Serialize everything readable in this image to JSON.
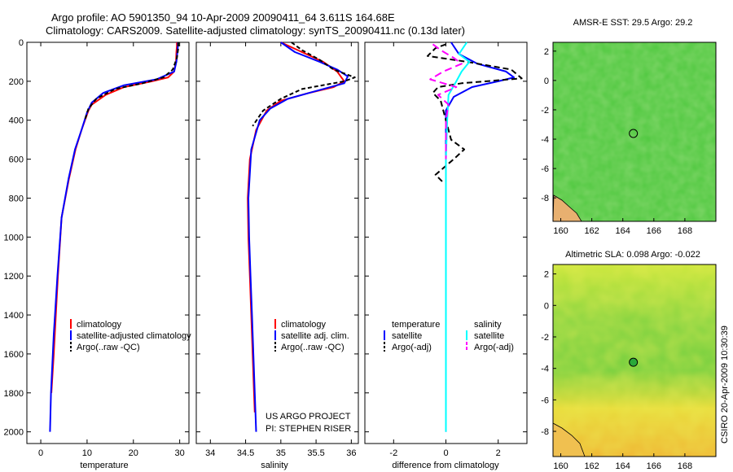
{
  "title": {
    "line1": "Argo profile: AO 5901350_94 10-Apr-2009 20090411_64 3.611S 164.68E",
    "line2": "Climatology: CARS2009. Satellite-adjusted climatology: synTS_20090411.nc (0.13d later)"
  },
  "side_text": "CSIRO 20-Apr-2009 10:30:39",
  "credit": {
    "line1": "US ARGO PROJECT",
    "line2": "PI: STEPHEN RISER"
  },
  "colors": {
    "climatology": "#ff0000",
    "satellite": "#0000ff",
    "argo": "#000000",
    "sat_diff_salinity": "#00ffff",
    "argo_diff_salinity": "#ff00ff"
  },
  "chart_data": [
    {
      "type": "line",
      "name": "temperature",
      "xlabel": "temperature",
      "xlim": [
        -3,
        32
      ],
      "ylim": [
        2060,
        0
      ],
      "xticks": [
        0,
        10,
        20,
        30
      ],
      "yticks": [
        0,
        200,
        400,
        600,
        800,
        1000,
        1200,
        1400,
        1600,
        1800,
        2000
      ],
      "legend": [
        "climatology",
        "satellite-adjusted climatology",
        "Argo(..raw -QC)"
      ],
      "series": [
        {
          "name": "climatology",
          "color": "#ff0000",
          "dash": "",
          "x": [
            29.4,
            29.4,
            29.3,
            29.2,
            28.8,
            27.5,
            24.0,
            18.0,
            14.0,
            11.0,
            10.3,
            8.8,
            7.5,
            6.1,
            4.5,
            3.7,
            2.8,
            2.3
          ],
          "y": [
            0,
            20,
            50,
            100,
            150,
            180,
            200,
            230,
            270,
            320,
            350,
            450,
            550,
            700,
            900,
            1200,
            1600,
            1800
          ]
        },
        {
          "name": "satellite",
          "color": "#0000ff",
          "dash": "",
          "x": [
            29.6,
            29.6,
            29.5,
            29.3,
            28.8,
            25.0,
            18.0,
            13.5,
            11.0,
            10.0,
            8.8,
            7.4,
            6.0,
            4.5,
            3.6,
            2.8,
            2.2,
            2.0
          ],
          "y": [
            0,
            20,
            50,
            100,
            150,
            190,
            220,
            260,
            310,
            360,
            450,
            550,
            700,
            900,
            1200,
            1500,
            1800,
            2000
          ]
        },
        {
          "name": "Argo",
          "color": "#000000",
          "dash": "5,3",
          "x": [
            29.7,
            29.7,
            29.4,
            28.5,
            26.5,
            22.0,
            16.0,
            12.0,
            10.3,
            9.5
          ],
          "y": [
            0,
            30,
            80,
            140,
            180,
            210,
            240,
            290,
            340,
            400
          ]
        }
      ]
    },
    {
      "type": "line",
      "name": "salinity",
      "xlabel": "salinity",
      "xlim": [
        33.8,
        36.1
      ],
      "ylim": [
        2060,
        0
      ],
      "xticks": [
        34,
        34.5,
        35,
        35.5,
        36
      ],
      "legend": [
        "climatology",
        "satellite adj. clim.",
        "Argo(..raw -QC)"
      ],
      "series": [
        {
          "name": "climatology",
          "color": "#ff0000",
          "dash": "",
          "x": [
            35.0,
            35.3,
            35.6,
            35.8,
            35.9,
            35.75,
            35.4,
            35.0,
            34.8,
            34.65,
            34.56,
            34.53,
            34.54,
            34.56,
            34.58,
            34.6,
            34.62,
            34.63
          ],
          "y": [
            0,
            50,
            100,
            150,
            200,
            230,
            260,
            300,
            350,
            450,
            600,
            800,
            1000,
            1200,
            1400,
            1600,
            1800,
            1900
          ]
        },
        {
          "name": "satellite",
          "color": "#0000ff",
          "dash": "",
          "x": [
            35.0,
            35.2,
            35.55,
            35.8,
            35.95,
            35.9,
            35.5,
            35.1,
            34.85,
            34.7,
            34.58,
            34.54,
            34.55,
            34.57,
            34.59,
            34.61,
            34.63,
            34.65
          ],
          "y": [
            0,
            50,
            100,
            140,
            175,
            210,
            250,
            290,
            340,
            400,
            550,
            800,
            1000,
            1200,
            1400,
            1600,
            1800,
            2000
          ]
        },
        {
          "name": "Argo",
          "color": "#000000",
          "dash": "5,3",
          "x": [
            35.15,
            35.3,
            35.55,
            35.75,
            36.05,
            35.9,
            35.3,
            35.0,
            34.75,
            34.6
          ],
          "y": [
            0,
            40,
            90,
            140,
            180,
            200,
            240,
            290,
            350,
            430
          ]
        }
      ]
    },
    {
      "type": "line",
      "name": "difference",
      "xlabel": "difference from climatology",
      "xlim": [
        -3.1,
        3.1
      ],
      "ylim": [
        2060,
        0
      ],
      "xticks": [
        -2,
        0,
        2
      ],
      "legend_headers": [
        "temperature",
        "salinity"
      ],
      "legend": [
        "satellite",
        "Argo(-adj)",
        "satellite",
        "Argo(-adj)"
      ],
      "series": [
        {
          "name": "temperature satellite",
          "color": "#0000ff",
          "dash": "",
          "x": [
            0.2,
            0.5,
            1.2,
            2.3,
            2.6,
            2.0,
            1.0,
            0.3,
            0.0,
            0.0,
            0.0,
            0.0
          ],
          "y": [
            0,
            60,
            110,
            150,
            180,
            200,
            230,
            280,
            350,
            600,
            1200,
            2000
          ]
        },
        {
          "name": "temperature Argo",
          "color": "#000000",
          "dash": "7,4",
          "x": [
            0.0,
            -0.4,
            -0.7,
            0.8,
            2.5,
            2.9,
            0.6,
            -0.3,
            -0.5,
            -0.2,
            0.0,
            0.2,
            0.7,
            0.3,
            -0.4,
            -0.1
          ],
          "y": [
            10,
            30,
            70,
            100,
            140,
            185,
            210,
            230,
            260,
            300,
            400,
            500,
            550,
            600,
            680,
            720
          ]
        },
        {
          "name": "salinity satellite",
          "color": "#00ffff",
          "dash": "",
          "x": [
            0.8,
            0.5,
            0.9,
            0.6,
            0.4,
            0.1,
            0.05,
            0.0,
            0.0,
            0.0,
            0.0,
            0.0
          ],
          "y": [
            0,
            60,
            100,
            150,
            200,
            270,
            400,
            600,
            900,
            1200,
            1600,
            2000
          ]
        },
        {
          "name": "salinity Argo",
          "color": "#ff00ff",
          "dash": "9,5",
          "x": [
            -0.5,
            -0.2,
            0.3,
            0.6,
            -0.1,
            -0.6,
            0.4,
            -0.3,
            0.1,
            0.0,
            0.0
          ],
          "y": [
            10,
            40,
            80,
            110,
            150,
            190,
            230,
            270,
            320,
            400,
            600
          ]
        }
      ]
    },
    {
      "type": "heatmap",
      "name": "sst-map",
      "title": "AMSR-E SST: 29.5 Argo: 29.2",
      "xticks": [
        160,
        162,
        164,
        166,
        168
      ],
      "yticks": [
        2,
        0,
        -2,
        -4,
        -6,
        -8
      ],
      "xlim": [
        159.5,
        170.0
      ],
      "ylim": [
        -9.6,
        2.6
      ],
      "marker": {
        "lon": 164.68,
        "lat": -3.611,
        "filled": false
      }
    },
    {
      "type": "heatmap",
      "name": "sla-map",
      "title": "Altimetric SLA: 0.098 Argo: -0.022",
      "xticks": [
        160,
        162,
        164,
        166,
        168
      ],
      "yticks": [
        2,
        0,
        -2,
        -4,
        -6,
        -8
      ],
      "xlim": [
        159.5,
        170.0
      ],
      "ylim": [
        -9.6,
        2.6
      ],
      "marker": {
        "lon": 164.68,
        "lat": -3.611,
        "filled": true
      }
    }
  ]
}
